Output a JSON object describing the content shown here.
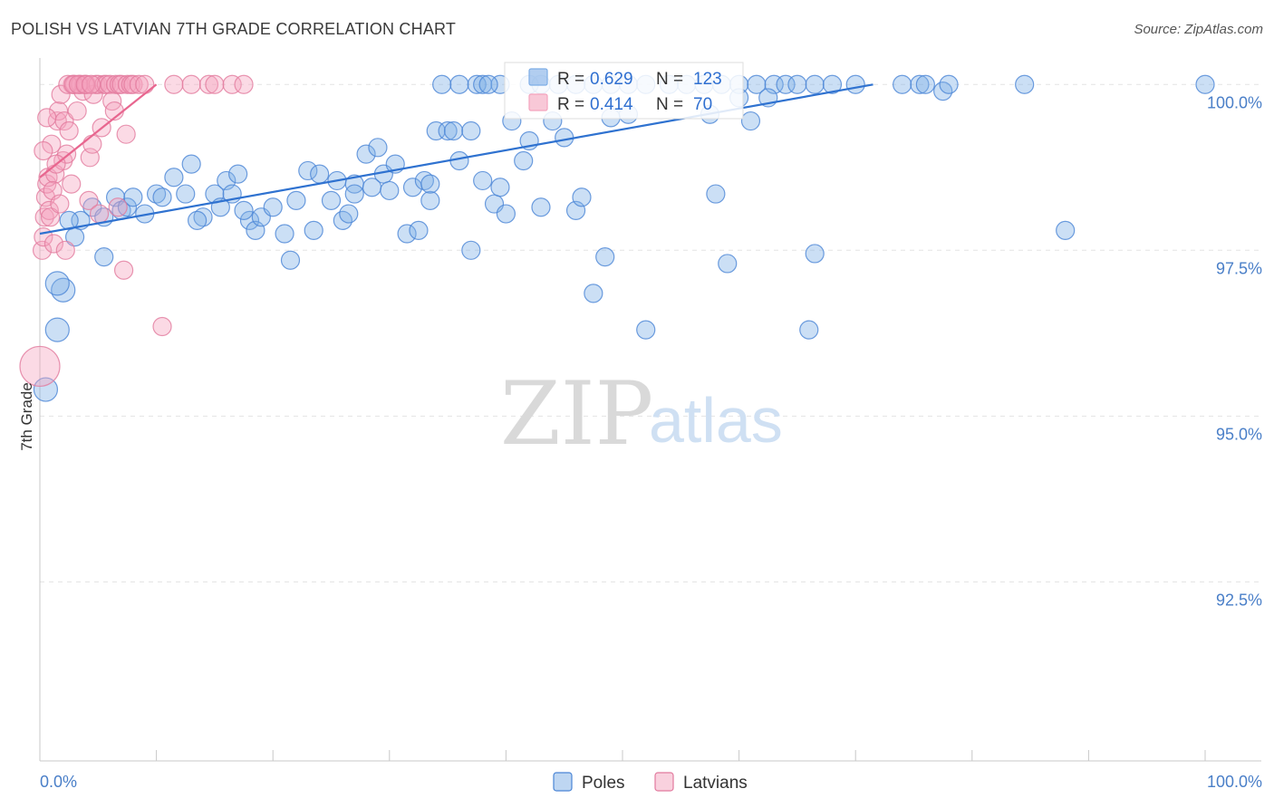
{
  "title": "POLISH VS LATVIAN 7TH GRADE CORRELATION CHART",
  "source": "Source: ZipAtlas.com",
  "chart_data": {
    "type": "scatter",
    "title": "POLISH VS LATVIAN 7TH GRADE CORRELATION CHART",
    "xlabel": "",
    "ylabel": "7th Grade",
    "xlim": [
      0,
      100
    ],
    "ylim": [
      89.8,
      100.4
    ],
    "x_tick_labels": [
      "0.0%",
      "100.0%"
    ],
    "y_ticks": [
      100,
      97.5,
      95,
      92.5
    ],
    "y_tick_labels": [
      "100.0%",
      "97.5%",
      "95.0%",
      "92.5%"
    ],
    "legend_stats": [
      {
        "name": "Poles",
        "r_label": "R =",
        "r": "0.629",
        "n_label": "N =",
        "n": "123",
        "color": "#7eaee6"
      },
      {
        "name": "Latvians",
        "r_label": "R =",
        "r": "0.414",
        "n_label": "N =",
        "n": "70",
        "color": "#f4a3bd"
      }
    ],
    "series": [
      {
        "name": "Poles",
        "color": "#7eaee6",
        "stroke": "#4a85d6",
        "trend": {
          "x": [
            0,
            71.5
          ],
          "y": [
            97.75,
            100.0
          ]
        },
        "trend_color": "#2f72d0",
        "points": [
          [
            0.5,
            95.4
          ],
          [
            1.5,
            96.3
          ],
          [
            2.0,
            96.9
          ],
          [
            1.5,
            97.0
          ],
          [
            3.0,
            97.7
          ],
          [
            3.5,
            97.95
          ],
          [
            2.5,
            97.95
          ],
          [
            4.5,
            98.15
          ],
          [
            5.5,
            98.0
          ],
          [
            5.5,
            97.4
          ],
          [
            6.5,
            98.3
          ],
          [
            7.0,
            98.1
          ],
          [
            7.5,
            98.15
          ],
          [
            8.0,
            98.3
          ],
          [
            9.0,
            98.05
          ],
          [
            10.0,
            98.35
          ],
          [
            10.5,
            98.3
          ],
          [
            11.5,
            98.6
          ],
          [
            12.5,
            98.35
          ],
          [
            13.0,
            98.8
          ],
          [
            14.0,
            98.0
          ],
          [
            15.0,
            98.35
          ],
          [
            15.5,
            98.15
          ],
          [
            16.0,
            98.55
          ],
          [
            16.5,
            98.35
          ],
          [
            17.0,
            98.65
          ],
          [
            18.0,
            97.95
          ],
          [
            18.5,
            97.8
          ],
          [
            19.0,
            98.0
          ],
          [
            20.0,
            98.15
          ],
          [
            21.0,
            97.75
          ],
          [
            21.5,
            97.35
          ],
          [
            22.0,
            98.25
          ],
          [
            23.0,
            98.7
          ],
          [
            23.5,
            97.8
          ],
          [
            24.0,
            98.65
          ],
          [
            25.0,
            98.25
          ],
          [
            25.5,
            98.55
          ],
          [
            26.0,
            97.95
          ],
          [
            26.5,
            98.05
          ],
          [
            27.0,
            98.5
          ],
          [
            28.0,
            98.95
          ],
          [
            28.5,
            98.45
          ],
          [
            29.5,
            98.65
          ],
          [
            30.0,
            98.4
          ],
          [
            30.5,
            98.8
          ],
          [
            31.5,
            97.75
          ],
          [
            32.0,
            98.45
          ],
          [
            32.5,
            97.8
          ],
          [
            33.0,
            98.55
          ],
          [
            33.5,
            98.25
          ],
          [
            34.0,
            99.3
          ],
          [
            35.0,
            99.3
          ],
          [
            35.5,
            99.3
          ],
          [
            36.0,
            98.85
          ],
          [
            37.0,
            99.3
          ],
          [
            37.0,
            97.5
          ],
          [
            38.0,
            98.55
          ],
          [
            39.0,
            98.2
          ],
          [
            39.5,
            98.45
          ],
          [
            40.0,
            98.05
          ],
          [
            40.5,
            99.45
          ],
          [
            41.5,
            98.85
          ],
          [
            42.0,
            99.15
          ],
          [
            43.0,
            98.15
          ],
          [
            44.0,
            99.45
          ],
          [
            45.0,
            99.2
          ],
          [
            46.0,
            98.1
          ],
          [
            46.5,
            98.3
          ],
          [
            47.5,
            96.85
          ],
          [
            48.5,
            97.4
          ],
          [
            49.0,
            99.5
          ],
          [
            50.5,
            99.55
          ],
          [
            52.0,
            96.3
          ],
          [
            57.5,
            99.55
          ],
          [
            58.0,
            98.35
          ],
          [
            59.0,
            97.3
          ],
          [
            66.0,
            96.3
          ],
          [
            66.5,
            97.45
          ],
          [
            77.5,
            99.9
          ],
          [
            88.0,
            97.8
          ],
          [
            34.5,
            100.0
          ],
          [
            36.0,
            100.0
          ],
          [
            37.5,
            100.0
          ],
          [
            38.0,
            100.0
          ],
          [
            39.5,
            100.0
          ],
          [
            42.0,
            100.0
          ],
          [
            43.0,
            100.0
          ],
          [
            44.5,
            100.0
          ],
          [
            46.0,
            100.0
          ],
          [
            47.5,
            100.0
          ],
          [
            49.0,
            100.0
          ],
          [
            50.5,
            100.0
          ],
          [
            52.0,
            100.0
          ],
          [
            54.0,
            100.0
          ],
          [
            55.5,
            100.0
          ],
          [
            57.0,
            100.0
          ],
          [
            58.5,
            100.0
          ],
          [
            60.0,
            100.0
          ],
          [
            61.5,
            100.0
          ],
          [
            63.0,
            100.0
          ],
          [
            64.0,
            100.0
          ],
          [
            65.0,
            100.0
          ],
          [
            66.5,
            100.0
          ],
          [
            68.0,
            100.0
          ],
          [
            70.0,
            100.0
          ],
          [
            74.0,
            100.0
          ],
          [
            75.5,
            100.0
          ],
          [
            76.0,
            100.0
          ],
          [
            78.0,
            100.0
          ],
          [
            84.5,
            100.0
          ],
          [
            100.0,
            100.0
          ],
          [
            61.0,
            99.45
          ],
          [
            60.0,
            99.8
          ],
          [
            62.5,
            99.8
          ],
          [
            29.0,
            99.05
          ],
          [
            33.5,
            98.5
          ],
          [
            17.5,
            98.1
          ],
          [
            27.0,
            98.35
          ],
          [
            13.5,
            97.95
          ],
          [
            38.5,
            100.0
          ]
        ]
      },
      {
        "name": "Latvians",
        "color": "#f4a3bd",
        "stroke": "#e27a9e",
        "trend": {
          "x": [
            0,
            10.0
          ],
          "y": [
            98.6,
            100.0
          ]
        },
        "trend_color": "#e8668f",
        "points": [
          [
            0.0,
            95.75
          ],
          [
            0.2,
            97.5
          ],
          [
            0.3,
            97.7
          ],
          [
            0.4,
            98.0
          ],
          [
            0.5,
            98.3
          ],
          [
            0.6,
            98.5
          ],
          [
            0.7,
            98.6
          ],
          [
            0.8,
            98.1
          ],
          [
            0.9,
            98.0
          ],
          [
            1.0,
            99.1
          ],
          [
            1.2,
            97.6
          ],
          [
            1.3,
            98.65
          ],
          [
            1.5,
            99.45
          ],
          [
            1.6,
            99.6
          ],
          [
            1.8,
            99.85
          ],
          [
            2.0,
            98.85
          ],
          [
            2.1,
            99.45
          ],
          [
            2.2,
            97.5
          ],
          [
            2.3,
            98.95
          ],
          [
            2.5,
            99.3
          ],
          [
            2.7,
            98.5
          ],
          [
            2.8,
            100.0
          ],
          [
            3.0,
            100.0
          ],
          [
            3.2,
            99.6
          ],
          [
            3.4,
            100.0
          ],
          [
            3.5,
            100.0
          ],
          [
            3.7,
            99.9
          ],
          [
            3.8,
            100.0
          ],
          [
            4.0,
            100.0
          ],
          [
            4.2,
            98.25
          ],
          [
            4.3,
            98.9
          ],
          [
            4.5,
            99.1
          ],
          [
            4.6,
            99.85
          ],
          [
            4.8,
            100.0
          ],
          [
            5.0,
            100.0
          ],
          [
            5.1,
            98.05
          ],
          [
            5.3,
            99.35
          ],
          [
            5.5,
            100.0
          ],
          [
            5.7,
            100.0
          ],
          [
            6.0,
            100.0
          ],
          [
            6.2,
            99.75
          ],
          [
            6.4,
            99.6
          ],
          [
            6.5,
            100.0
          ],
          [
            6.7,
            98.15
          ],
          [
            6.8,
            100.0
          ],
          [
            7.0,
            100.0
          ],
          [
            7.2,
            97.2
          ],
          [
            7.4,
            99.25
          ],
          [
            7.5,
            100.0
          ],
          [
            7.8,
            100.0
          ],
          [
            8.0,
            100.0
          ],
          [
            0.3,
            99.0
          ],
          [
            0.6,
            99.5
          ],
          [
            1.1,
            98.4
          ],
          [
            1.7,
            98.2
          ],
          [
            2.4,
            100.0
          ],
          [
            2.9,
            100.0
          ],
          [
            3.3,
            100.0
          ],
          [
            3.9,
            100.0
          ],
          [
            4.4,
            100.0
          ],
          [
            8.5,
            100.0
          ],
          [
            9.0,
            100.0
          ],
          [
            10.5,
            96.35
          ],
          [
            11.5,
            100.0
          ],
          [
            13.0,
            100.0
          ],
          [
            14.5,
            100.0
          ],
          [
            15.0,
            100.0
          ],
          [
            16.5,
            100.0
          ],
          [
            17.5,
            100.0
          ],
          [
            1.4,
            98.8
          ]
        ]
      }
    ]
  }
}
